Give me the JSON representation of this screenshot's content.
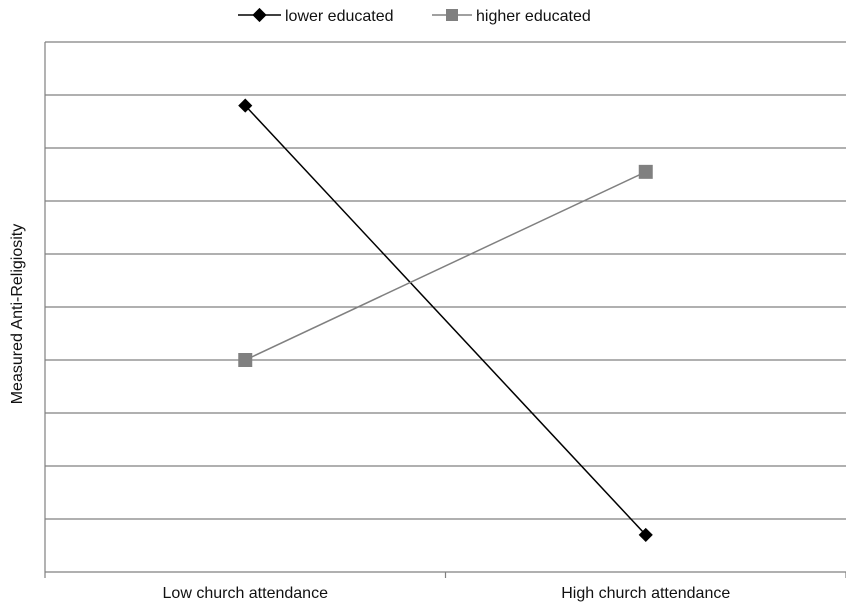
{
  "chart_data": {
    "type": "line",
    "title": "",
    "xlabel": "",
    "ylabel": "Measured Anti-Religiosity",
    "categories": [
      "Low church attendance",
      "High church attendance"
    ],
    "ylim": [
      0,
      10
    ],
    "grid": true,
    "legend_position": "top",
    "series": [
      {
        "name": "lower educated",
        "values": [
          8.8,
          0.7
        ],
        "color": "#000000",
        "marker": "diamond"
      },
      {
        "name": "higher educated",
        "values": [
          4.0,
          7.55
        ],
        "color": "#808080",
        "marker": "square"
      }
    ]
  }
}
